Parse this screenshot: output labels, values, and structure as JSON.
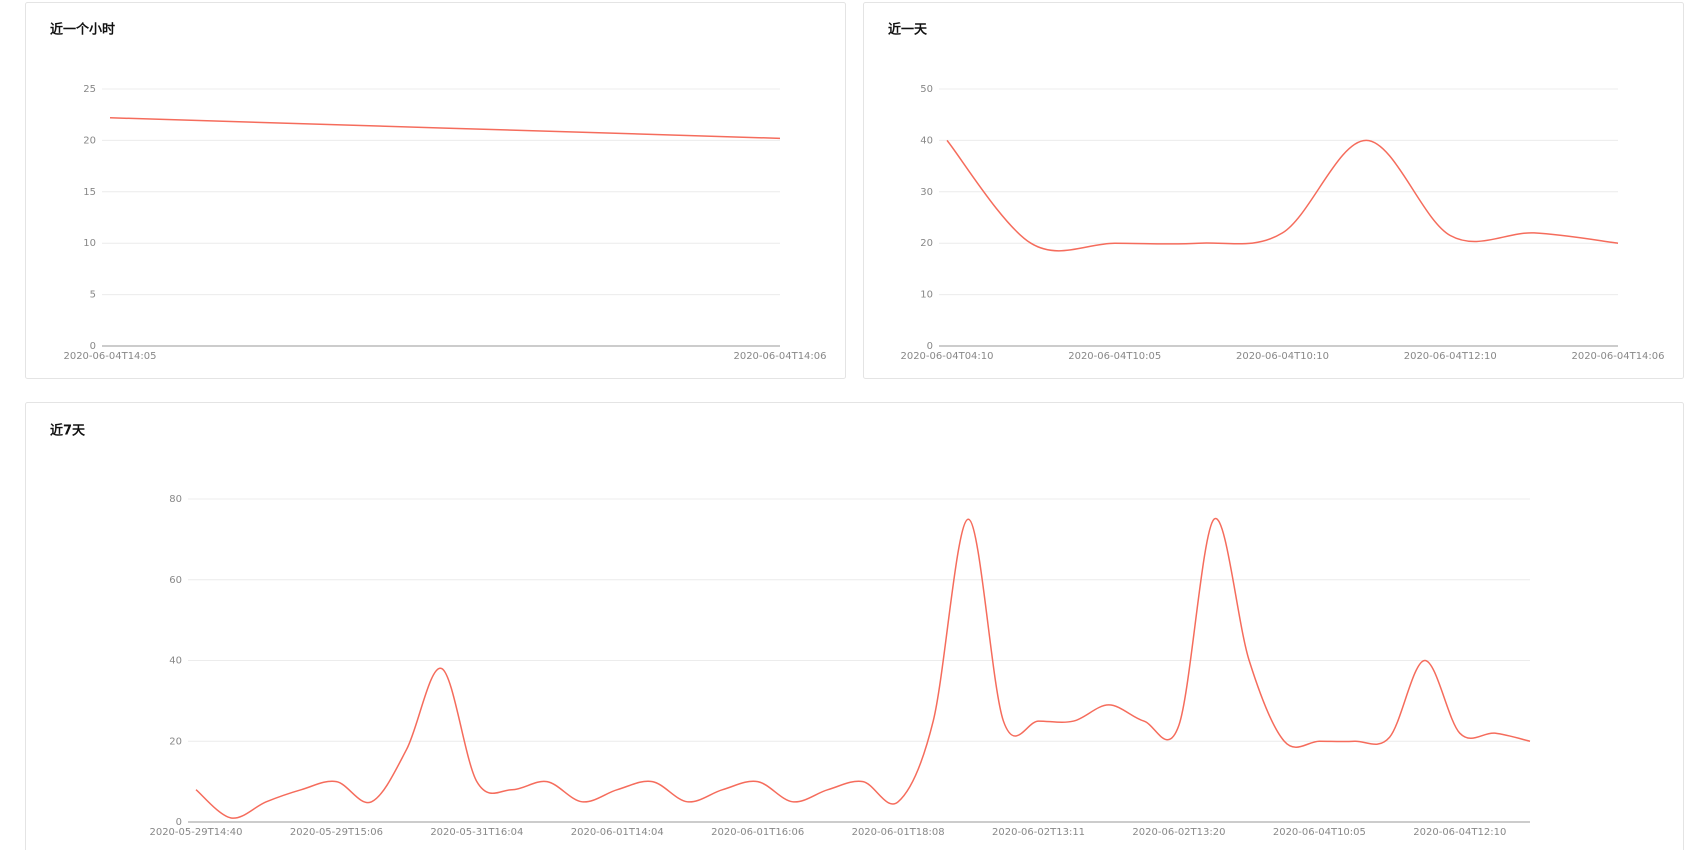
{
  "chart_data": [
    {
      "type": "line",
      "title": "近一个小时",
      "categories": [
        "2020-06-04T14:05",
        "2020-06-04T14:06"
      ],
      "values": [
        22.2,
        20.2
      ],
      "color": "#f56c5c",
      "ylim": [
        0,
        25
      ],
      "yticks": [
        0,
        5,
        10,
        15,
        20,
        25
      ],
      "grid": true
    },
    {
      "type": "line",
      "title": "近一天",
      "categories": [
        "2020-06-04T04:10",
        null,
        "2020-06-04T10:05",
        null,
        "2020-06-04T10:10",
        null,
        "2020-06-04T12:10",
        null,
        "2020-06-04T14:06"
      ],
      "values": [
        40,
        20,
        20,
        20,
        22,
        40,
        21.5,
        22,
        20
      ],
      "color": "#f56c5c",
      "ylim": [
        0,
        50
      ],
      "yticks": [
        0,
        10,
        20,
        30,
        40,
        50
      ],
      "grid": true
    },
    {
      "type": "line",
      "title": "近7天",
      "categories": [
        "2020-05-29T14:40",
        null,
        null,
        null,
        "2020-05-29T15:06",
        null,
        null,
        null,
        "2020-05-31T16:04",
        null,
        null,
        null,
        "2020-06-01T14:04",
        null,
        null,
        null,
        "2020-06-01T16:06",
        null,
        null,
        null,
        "2020-06-01T18:08",
        null,
        null,
        null,
        "2020-06-02T13:11",
        null,
        null,
        null,
        "2020-06-02T13:20",
        null,
        null,
        null,
        "2020-06-04T10:05",
        null,
        null,
        null,
        "2020-06-04T12:10",
        null,
        null
      ],
      "values": [
        8,
        1,
        5,
        8,
        10,
        5,
        18,
        38,
        10,
        8,
        10,
        5,
        8,
        10,
        5,
        8,
        10,
        5,
        8,
        10,
        5,
        25,
        75,
        25,
        25,
        25,
        29,
        25,
        24,
        75,
        40,
        20,
        20,
        20,
        21,
        40,
        22,
        22,
        20
      ],
      "color": "#f56c5c",
      "ylim": [
        0,
        80
      ],
      "yticks": [
        0,
        20,
        40,
        60,
        80
      ],
      "grid": true
    }
  ]
}
